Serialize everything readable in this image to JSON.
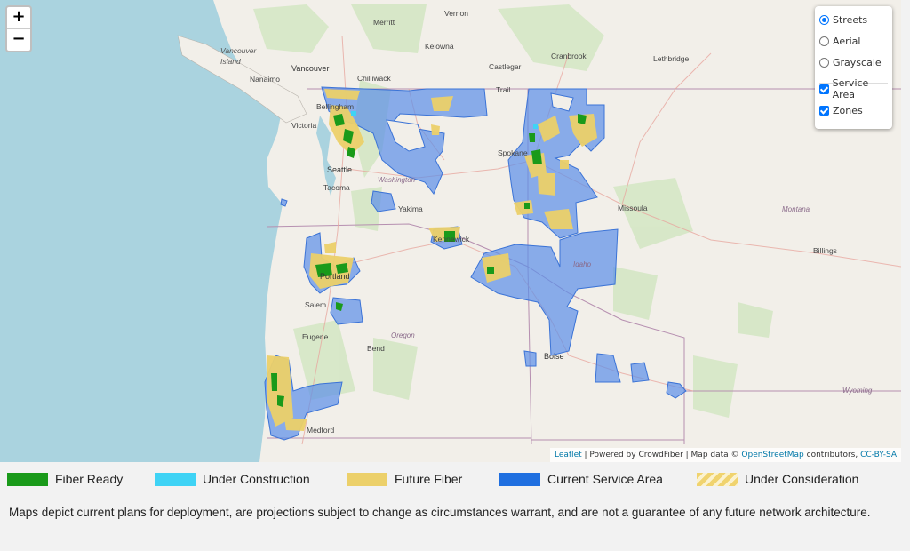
{
  "map": {
    "zoom_in": "+",
    "zoom_out": "−",
    "labels": {
      "merritt": "Merritt",
      "vernon": "Vernon",
      "kelowna": "Kelowna",
      "cranbrook": "Cranbrook",
      "castlegar": "Castlegar",
      "lethbridge": "Lethbridge",
      "vancouver_island_1": "Vancouver",
      "vancouver_island_2": "Island",
      "vancouver": "Vancouver",
      "chilliwack": "Chilliwack",
      "nanaimo": "Nanaimo",
      "trail": "Trail",
      "bellingham": "Bellingham",
      "victoria": "Victoria",
      "seattle": "Seattle",
      "tacoma": "Tacoma",
      "washington": "Washington",
      "spokane": "Spokane",
      "yakima": "Yakima",
      "missoula": "Missoula",
      "montana": "Montana",
      "kennewick": "Kennewick",
      "billings": "Billings",
      "idaho": "Idaho",
      "portland": "Portland",
      "salem": "Salem",
      "eugene": "Eugene",
      "oregon": "Oregon",
      "bend": "Bend",
      "boise": "Boise",
      "wyoming": "Wyoming",
      "medford": "Medford"
    }
  },
  "layer_control": {
    "base_layers": [
      {
        "label": "Streets",
        "selected": true
      },
      {
        "label": "Aerial",
        "selected": false
      },
      {
        "label": "Grayscale",
        "selected": false
      }
    ],
    "overlays": [
      {
        "label": "Service Area",
        "checked": true
      },
      {
        "label": "Zones",
        "checked": true
      }
    ]
  },
  "attribution": {
    "leaflet": "Leaflet",
    "powered": " | Powered by CrowdFiber | Map data © ",
    "osm": "OpenStreetMap",
    "contributors": " contributors, ",
    "license": "CC-BY-SA"
  },
  "legend": [
    {
      "label": "Fiber Ready",
      "color": "#1a9a1a"
    },
    {
      "label": "Under Construction",
      "color": "#3fd3f5"
    },
    {
      "label": "Future Fiber",
      "color": "#ecd06a"
    },
    {
      "label": "Current Service Area",
      "color": "#1f6fe0"
    },
    {
      "label": "Under Consideration",
      "color": "#f0d36e"
    }
  ],
  "disclaimer": "Maps depict current plans for deployment, are projections subject to change as circumstances warrant, and are not a guarantee of any future network architecture."
}
